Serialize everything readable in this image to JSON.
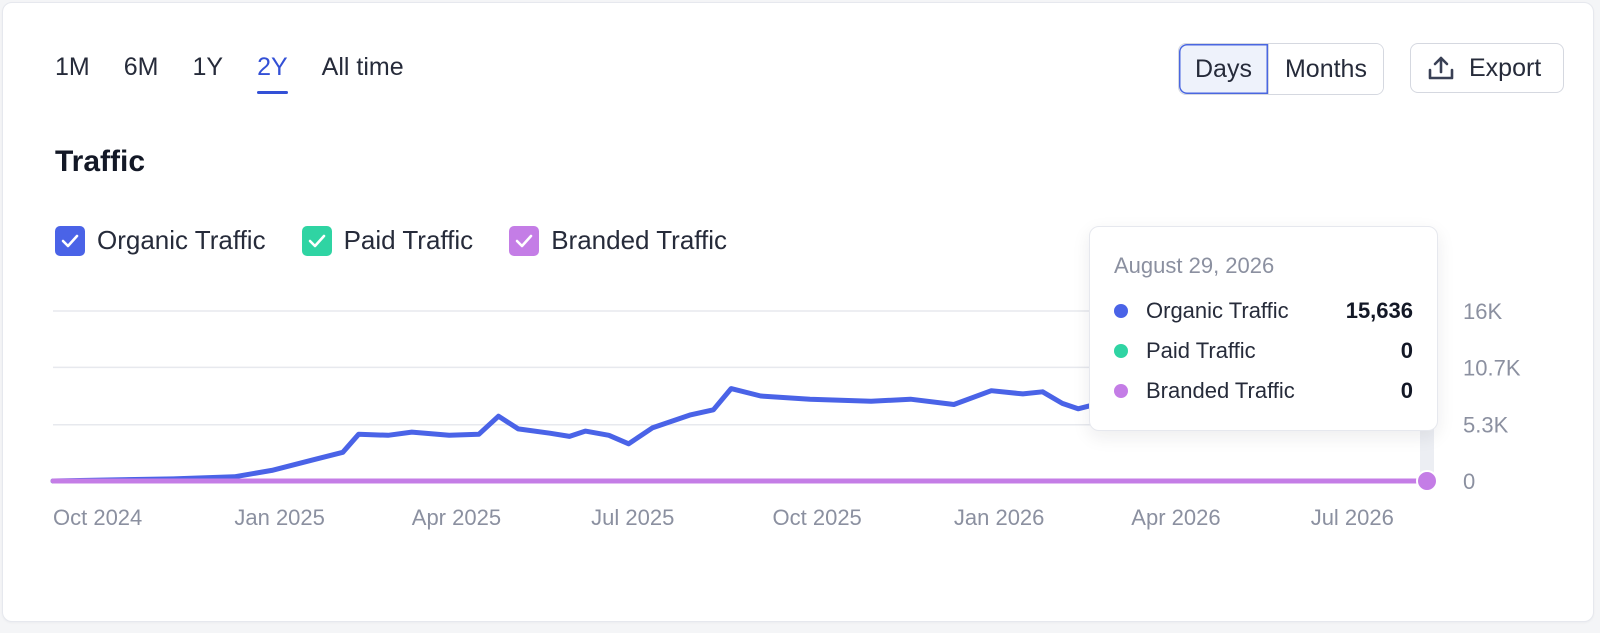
{
  "range_tabs": [
    {
      "label": "1M",
      "active": false
    },
    {
      "label": "6M",
      "active": false
    },
    {
      "label": "1Y",
      "active": false
    },
    {
      "label": "2Y",
      "active": true
    },
    {
      "label": "All time",
      "active": false
    }
  ],
  "granularity": {
    "days_label": "Days",
    "months_label": "Months",
    "selected": "Days"
  },
  "export": {
    "label": "Export",
    "icon": "upload-icon"
  },
  "title": "Traffic",
  "legend": [
    {
      "label": "Organic Traffic",
      "color": "#4a63e7",
      "checked": true,
      "icon": "check-icon"
    },
    {
      "label": "Paid Traffic",
      "color": "#2fd4a3",
      "checked": true,
      "icon": "check-icon"
    },
    {
      "label": "Branded Traffic",
      "color": "#c47de6",
      "checked": true,
      "icon": "check-icon"
    }
  ],
  "tooltip": {
    "date": "August 29, 2026",
    "rows": [
      {
        "name": "Organic Traffic",
        "value": "15,636",
        "color": "#4a63e7"
      },
      {
        "name": "Paid Traffic",
        "value": "0",
        "color": "#2fd4a3"
      },
      {
        "name": "Branded Traffic",
        "value": "0",
        "color": "#c47de6"
      }
    ]
  },
  "chart_data": {
    "type": "line",
    "x_tick_labels": [
      "Oct 2024",
      "Jan 2025",
      "Apr 2025",
      "Jul 2025",
      "Oct 2025",
      "Jan 2026",
      "Apr 2026",
      "Jul 2026"
    ],
    "y_tick_labels": [
      "0",
      "5.3K",
      "10.7K",
      "16K"
    ],
    "ylim": [
      0,
      16000
    ],
    "xlim": [
      "2024-10-01",
      "2026-08-29"
    ],
    "grid": true,
    "series": [
      {
        "name": "Organic Traffic",
        "color": "#4a63e7",
        "points": [
          [
            "2024-10-01",
            0
          ],
          [
            "2024-11-01",
            100
          ],
          [
            "2024-12-01",
            200
          ],
          [
            "2025-01-01",
            400
          ],
          [
            "2025-01-20",
            1000
          ],
          [
            "2025-02-10",
            2000
          ],
          [
            "2025-02-25",
            2700
          ],
          [
            "2025-03-05",
            4400
          ],
          [
            "2025-03-20",
            4300
          ],
          [
            "2025-04-01",
            4600
          ],
          [
            "2025-04-20",
            4300
          ],
          [
            "2025-05-05",
            4400
          ],
          [
            "2025-05-15",
            6100
          ],
          [
            "2025-05-25",
            4900
          ],
          [
            "2025-06-10",
            4500
          ],
          [
            "2025-06-20",
            4200
          ],
          [
            "2025-06-28",
            4700
          ],
          [
            "2025-07-10",
            4300
          ],
          [
            "2025-07-20",
            3500
          ],
          [
            "2025-08-01",
            5000
          ],
          [
            "2025-08-20",
            6200
          ],
          [
            "2025-09-01",
            6700
          ],
          [
            "2025-09-10",
            8700
          ],
          [
            "2025-09-25",
            8000
          ],
          [
            "2025-10-20",
            7700
          ],
          [
            "2025-11-20",
            7500
          ],
          [
            "2025-12-10",
            7700
          ],
          [
            "2026-01-01",
            7200
          ],
          [
            "2026-01-20",
            8500
          ],
          [
            "2026-02-05",
            8200
          ],
          [
            "2026-02-15",
            8400
          ],
          [
            "2026-02-25",
            7300
          ],
          [
            "2026-03-05",
            6800
          ],
          [
            "2026-08-25",
            15000
          ],
          [
            "2026-08-29",
            15636
          ]
        ]
      },
      {
        "name": "Paid Traffic",
        "color": "#2fd4a3",
        "points": [
          [
            "2024-10-01",
            0
          ],
          [
            "2026-08-29",
            0
          ]
        ]
      },
      {
        "name": "Branded Traffic",
        "color": "#c47de6",
        "points": [
          [
            "2024-10-01",
            0
          ],
          [
            "2026-08-29",
            0
          ]
        ]
      }
    ]
  }
}
